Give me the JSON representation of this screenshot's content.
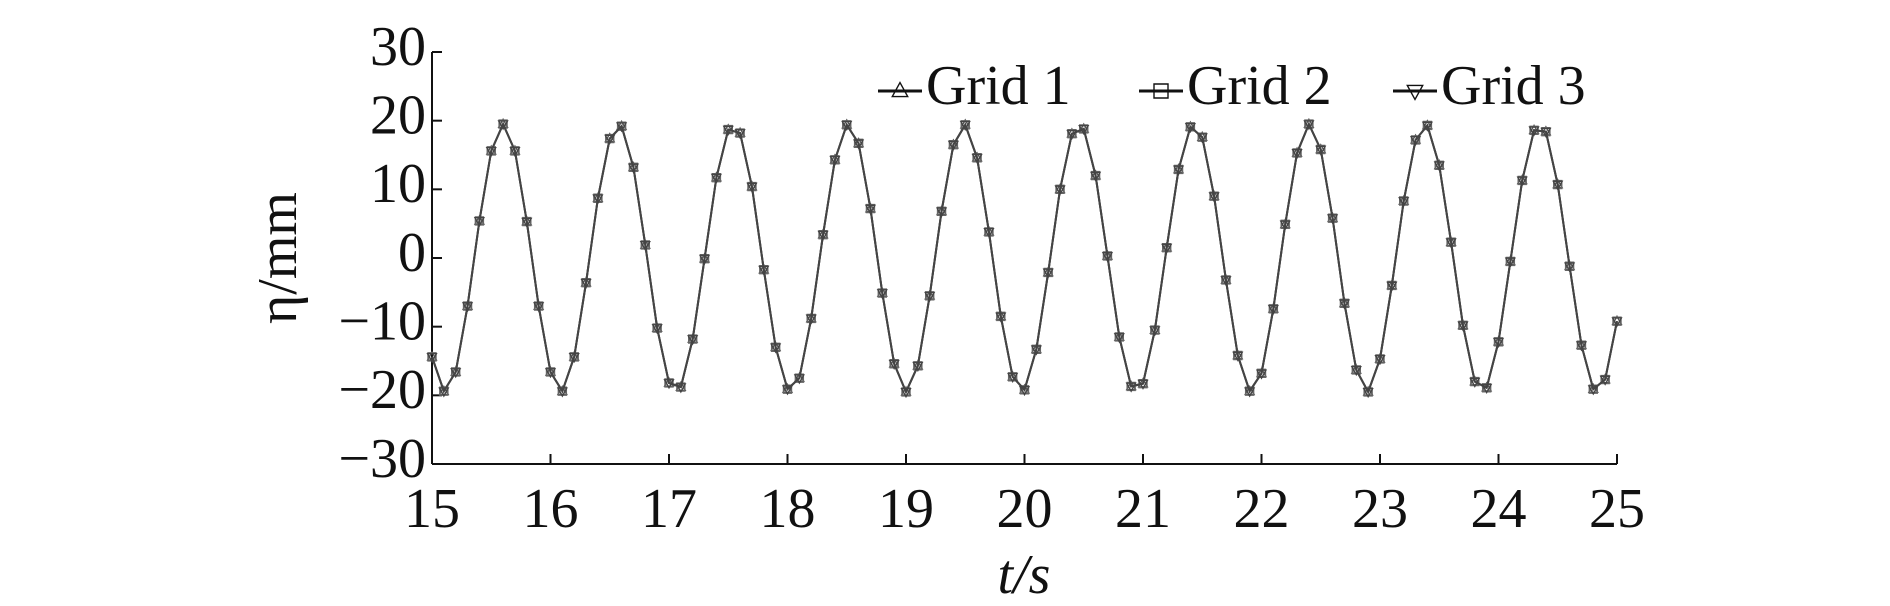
{
  "chart_data": {
    "type": "line",
    "x_label": "t/s",
    "y_label": "η/mm",
    "x": [
      15.0,
      15.1,
      15.2,
      15.3,
      15.4,
      15.5,
      15.6,
      15.7,
      15.8,
      15.9,
      16.0,
      16.1,
      16.2,
      16.3,
      16.4,
      16.5,
      16.6,
      16.7,
      16.8,
      16.9,
      17.0,
      17.1,
      17.2,
      17.3,
      17.4,
      17.5,
      17.6,
      17.7,
      17.8,
      17.9,
      18.0,
      18.1,
      18.2,
      18.3,
      18.4,
      18.5,
      18.6,
      18.7,
      18.8,
      18.9,
      19.0,
      19.1,
      19.2,
      19.3,
      19.4,
      19.5,
      19.6,
      19.7,
      19.8,
      19.9,
      20.0,
      20.1,
      20.2,
      20.3,
      20.4,
      20.5,
      20.6,
      20.7,
      20.8,
      20.9,
      21.0,
      21.1,
      21.2,
      21.3,
      21.4,
      21.5,
      21.6,
      21.7,
      21.8,
      21.9,
      22.0,
      22.1,
      22.2,
      22.3,
      22.4,
      22.5,
      22.6,
      22.7,
      22.8,
      22.9,
      23.0,
      23.1,
      23.2,
      23.3,
      23.4,
      23.5,
      23.6,
      23.7,
      23.8,
      23.9,
      24.0,
      24.1,
      24.2,
      24.3,
      24.4,
      24.5,
      24.6,
      24.7,
      24.8,
      24.9,
      25.0
    ],
    "series": [
      {
        "name": "Grid 1",
        "marker": "triangle",
        "color": "#555555",
        "values": [
          -14.4,
          -19.4,
          -16.6,
          -7.0,
          5.4,
          15.6,
          19.5,
          15.6,
          5.3,
          -7.0,
          -16.6,
          -19.4,
          -14.4,
          -3.6,
          8.7,
          17.4,
          19.2,
          13.2,
          1.9,
          -10.2,
          -18.2,
          -18.8,
          -11.8,
          -0.1,
          11.7,
          18.7,
          18.2,
          10.4,
          -1.7,
          -13.0,
          -19.1,
          -17.5,
          -8.8,
          3.4,
          14.3,
          19.4,
          16.7,
          7.2,
          -5.1,
          -15.4,
          -19.5,
          -15.7,
          -5.5,
          6.8,
          16.5,
          19.4,
          14.6,
          3.8,
          -8.5,
          -17.3,
          -19.2,
          -13.3,
          -2.1,
          10.0,
          18.1,
          18.8,
          12.0,
          0.3,
          -11.5,
          -18.7,
          -18.3,
          -10.5,
          1.5,
          12.9,
          19.1,
          17.6,
          9.0,
          -3.2,
          -14.2,
          -19.4,
          -16.8,
          -7.4,
          4.9,
          15.3,
          19.5,
          15.8,
          5.8,
          -6.6,
          -16.3,
          -19.5,
          -14.7,
          -4.0,
          8.3,
          17.2,
          19.3,
          13.5,
          2.3,
          -9.8,
          -18.0,
          -18.9,
          -12.2,
          -0.5,
          11.3,
          18.6,
          18.4,
          10.7,
          -1.2,
          -12.7,
          -19.1,
          -17.7,
          -9.2
        ]
      },
      {
        "name": "Grid 2",
        "marker": "square",
        "color": "#666666",
        "values": [
          -14.4,
          -19.4,
          -16.6,
          -7.0,
          5.4,
          15.6,
          19.5,
          15.6,
          5.3,
          -7.0,
          -16.6,
          -19.4,
          -14.4,
          -3.6,
          8.7,
          17.4,
          19.2,
          13.2,
          1.9,
          -10.2,
          -18.2,
          -18.8,
          -11.8,
          -0.1,
          11.7,
          18.7,
          18.2,
          10.4,
          -1.7,
          -13.0,
          -19.1,
          -17.5,
          -8.8,
          3.4,
          14.3,
          19.4,
          16.7,
          7.2,
          -5.1,
          -15.4,
          -19.5,
          -15.7,
          -5.5,
          6.8,
          16.5,
          19.4,
          14.6,
          3.8,
          -8.5,
          -17.3,
          -19.2,
          -13.3,
          -2.1,
          10.0,
          18.1,
          18.8,
          12.0,
          0.3,
          -11.5,
          -18.7,
          -18.3,
          -10.5,
          1.5,
          12.9,
          19.1,
          17.6,
          9.0,
          -3.2,
          -14.2,
          -19.4,
          -16.8,
          -7.4,
          4.9,
          15.3,
          19.5,
          15.8,
          5.8,
          -6.6,
          -16.3,
          -19.5,
          -14.7,
          -4.0,
          8.3,
          17.2,
          19.3,
          13.5,
          2.3,
          -9.8,
          -18.0,
          -18.9,
          -12.2,
          -0.5,
          11.3,
          18.6,
          18.4,
          10.7,
          -1.2,
          -12.7,
          -19.1,
          -17.7,
          -9.2
        ]
      },
      {
        "name": "Grid 3",
        "marker": "triangle-down",
        "color": "#444444",
        "values": [
          -14.4,
          -19.4,
          -16.6,
          -7.0,
          5.4,
          15.6,
          19.5,
          15.6,
          5.3,
          -7.0,
          -16.6,
          -19.4,
          -14.4,
          -3.6,
          8.7,
          17.4,
          19.2,
          13.2,
          1.9,
          -10.2,
          -18.2,
          -18.8,
          -11.8,
          -0.1,
          11.7,
          18.7,
          18.2,
          10.4,
          -1.7,
          -13.0,
          -19.1,
          -17.5,
          -8.8,
          3.4,
          14.3,
          19.4,
          16.7,
          7.2,
          -5.1,
          -15.4,
          -19.5,
          -15.7,
          -5.5,
          6.8,
          16.5,
          19.4,
          14.6,
          3.8,
          -8.5,
          -17.3,
          -19.2,
          -13.3,
          -2.1,
          10.0,
          18.1,
          18.8,
          12.0,
          0.3,
          -11.5,
          -18.7,
          -18.3,
          -10.5,
          1.5,
          12.9,
          19.1,
          17.6,
          9.0,
          -3.2,
          -14.2,
          -19.4,
          -16.8,
          -7.4,
          4.9,
          15.3,
          19.5,
          15.8,
          5.8,
          -6.6,
          -16.3,
          -19.5,
          -14.7,
          -4.0,
          8.3,
          17.2,
          19.3,
          13.5,
          2.3,
          -9.8,
          -18.0,
          -18.9,
          -12.2,
          -0.5,
          11.3,
          18.6,
          18.4,
          10.7,
          -1.2,
          -12.7,
          -19.1,
          -17.7,
          -9.2
        ]
      }
    ],
    "xlim": [
      15,
      25
    ],
    "xticks": [
      15,
      16,
      17,
      18,
      19,
      20,
      21,
      22,
      23,
      24,
      25
    ],
    "ylim": [
      -30,
      30
    ],
    "yticks": [
      {
        "value": -30,
        "label": "−30"
      },
      {
        "value": -20,
        "label": "−20"
      },
      {
        "value": -10,
        "label": "−10"
      },
      0,
      10,
      20,
      30
    ],
    "legend": "top-right"
  }
}
